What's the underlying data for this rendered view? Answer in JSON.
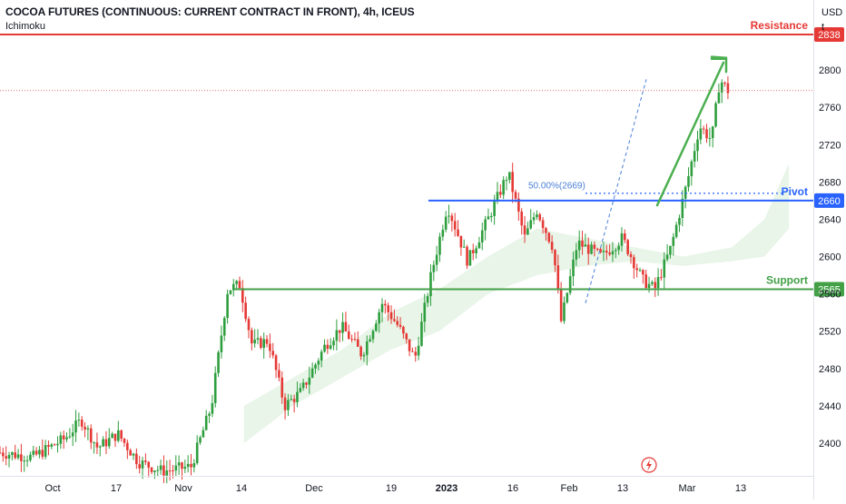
{
  "header": {
    "title": "COCOA FUTURES (CONTINUOUS: CURRENT CONTRACT IN FRONT), 4h, ICEUS",
    "indicator": "Ichimoku"
  },
  "price_axis": {
    "currency": "USD",
    "unit": "t"
  },
  "colors": {
    "up": "#26a69a",
    "up_candle": "#2e9e3e",
    "down": "#e53935",
    "resistance": "#e53935",
    "pivot": "#2962ff",
    "support": "#43a047",
    "arrow": "#4caf50",
    "fib": "#4a7fd6",
    "last_price": "#e57373"
  },
  "chart_data": {
    "type": "candlestick",
    "symbol": "COCOA FUTURES (CONTINUOUS: CURRENT CONTRACT IN FRONT)",
    "timeframe": "4h",
    "exchange": "ICEUS",
    "indicator": "Ichimoku",
    "ylim": [
      2365,
      2875
    ],
    "y_ticks": [
      2400,
      2440,
      2480,
      2520,
      2560,
      2600,
      2640,
      2680,
      2720,
      2760,
      2800
    ],
    "x_tick_labels": [
      "Oct",
      "17",
      "Nov",
      "14",
      "Dec",
      "19",
      "2023",
      "16",
      "Feb",
      "13",
      "Mar",
      "13"
    ],
    "levels": [
      {
        "name": "Resistance",
        "price": 2838,
        "label": "2838"
      },
      {
        "name": "Pivot",
        "price": 2660,
        "label": "2660"
      },
      {
        "name": "Support",
        "price": 2565,
        "label": "2565"
      }
    ],
    "fib_label": "50.00%(2669)",
    "fib_price": 2669,
    "last_price": 2778,
    "price_path": [
      {
        "t": 0.0,
        "p": 2390
      },
      {
        "t": 0.04,
        "p": 2385
      },
      {
        "t": 0.08,
        "p": 2405
      },
      {
        "t": 0.1,
        "p": 2425
      },
      {
        "t": 0.12,
        "p": 2395
      },
      {
        "t": 0.145,
        "p": 2410
      },
      {
        "t": 0.17,
        "p": 2380
      },
      {
        "t": 0.2,
        "p": 2370
      },
      {
        "t": 0.235,
        "p": 2375
      },
      {
        "t": 0.26,
        "p": 2440
      },
      {
        "t": 0.28,
        "p": 2565
      },
      {
        "t": 0.295,
        "p": 2570
      },
      {
        "t": 0.31,
        "p": 2505
      },
      {
        "t": 0.33,
        "p": 2510
      },
      {
        "t": 0.35,
        "p": 2440
      },
      {
        "t": 0.37,
        "p": 2455
      },
      {
        "t": 0.4,
        "p": 2505
      },
      {
        "t": 0.42,
        "p": 2525
      },
      {
        "t": 0.445,
        "p": 2495
      },
      {
        "t": 0.47,
        "p": 2550
      },
      {
        "t": 0.49,
        "p": 2525
      },
      {
        "t": 0.51,
        "p": 2490
      },
      {
        "t": 0.53,
        "p": 2580
      },
      {
        "t": 0.55,
        "p": 2655
      },
      {
        "t": 0.575,
        "p": 2595
      },
      {
        "t": 0.6,
        "p": 2640
      },
      {
        "t": 0.625,
        "p": 2690
      },
      {
        "t": 0.645,
        "p": 2620
      },
      {
        "t": 0.66,
        "p": 2650
      },
      {
        "t": 0.68,
        "p": 2610
      },
      {
        "t": 0.69,
        "p": 2530
      },
      {
        "t": 0.71,
        "p": 2615
      },
      {
        "t": 0.74,
        "p": 2600
      },
      {
        "t": 0.765,
        "p": 2620
      },
      {
        "t": 0.79,
        "p": 2575
      },
      {
        "t": 0.805,
        "p": 2565
      },
      {
        "t": 0.825,
        "p": 2610
      },
      {
        "t": 0.845,
        "p": 2680
      },
      {
        "t": 0.86,
        "p": 2740
      },
      {
        "t": 0.875,
        "p": 2725
      },
      {
        "t": 0.885,
        "p": 2790
      },
      {
        "t": 0.895,
        "p": 2778
      }
    ],
    "cloud": [
      {
        "t": 0.3,
        "a": 2440,
        "b": 2400
      },
      {
        "t": 0.36,
        "a": 2470,
        "b": 2440
      },
      {
        "t": 0.42,
        "a": 2500,
        "b": 2470
      },
      {
        "t": 0.48,
        "a": 2540,
        "b": 2500
      },
      {
        "t": 0.54,
        "a": 2565,
        "b": 2520
      },
      {
        "t": 0.6,
        "a": 2600,
        "b": 2560
      },
      {
        "t": 0.66,
        "a": 2630,
        "b": 2580
      },
      {
        "t": 0.72,
        "a": 2620,
        "b": 2590
      },
      {
        "t": 0.78,
        "a": 2610,
        "b": 2595
      },
      {
        "t": 0.84,
        "a": 2600,
        "b": 2590
      },
      {
        "t": 0.9,
        "a": 2610,
        "b": 2595
      },
      {
        "t": 0.94,
        "a": 2640,
        "b": 2600
      },
      {
        "t": 0.97,
        "a": 2700,
        "b": 2630
      }
    ]
  }
}
